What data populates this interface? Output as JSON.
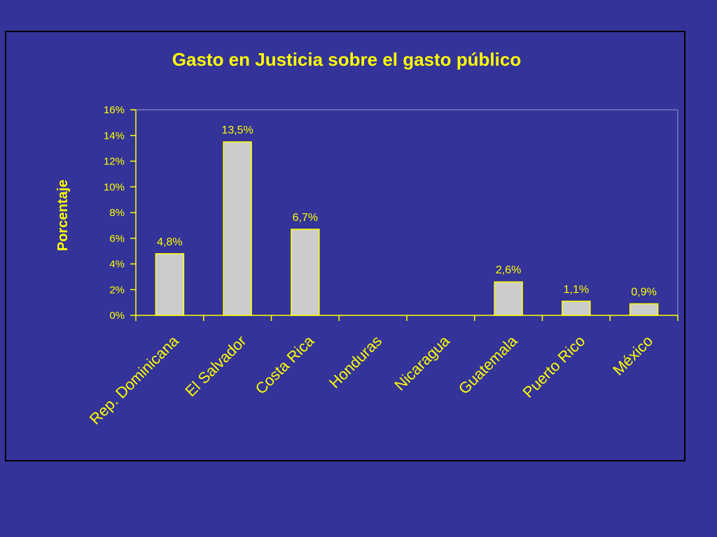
{
  "colors": {
    "background": "#333399",
    "text": "#ffff00",
    "bar_fill": "#cccccc",
    "bar_stroke": "#ffff00",
    "axis": "#ffff00",
    "frame_border": "#000000"
  },
  "chart_data": {
    "type": "bar",
    "title": "Gasto en Justicia sobre el gasto público",
    "xlabel": "",
    "ylabel": "Porcentaje",
    "ylim": [
      0,
      16
    ],
    "y_ticks": [
      0,
      2,
      4,
      6,
      8,
      10,
      12,
      14,
      16
    ],
    "y_tick_labels": [
      "0%",
      "2%",
      "4%",
      "6%",
      "8%",
      "10%",
      "12%",
      "14%",
      "16%"
    ],
    "categories": [
      "Rep. Dominicana",
      "El Salvador",
      "Costa Rica",
      "Honduras",
      "Nicaragua",
      "Guatemala",
      "Puerto Rico",
      "México"
    ],
    "values": [
      4.8,
      13.5,
      6.7,
      null,
      null,
      2.6,
      1.1,
      0.9
    ],
    "value_labels": [
      "4,8%",
      "13,5%",
      "6,7%",
      "",
      "",
      "2,6%",
      "1,1%",
      "0,9%"
    ],
    "grid": false,
    "legend": "none"
  }
}
